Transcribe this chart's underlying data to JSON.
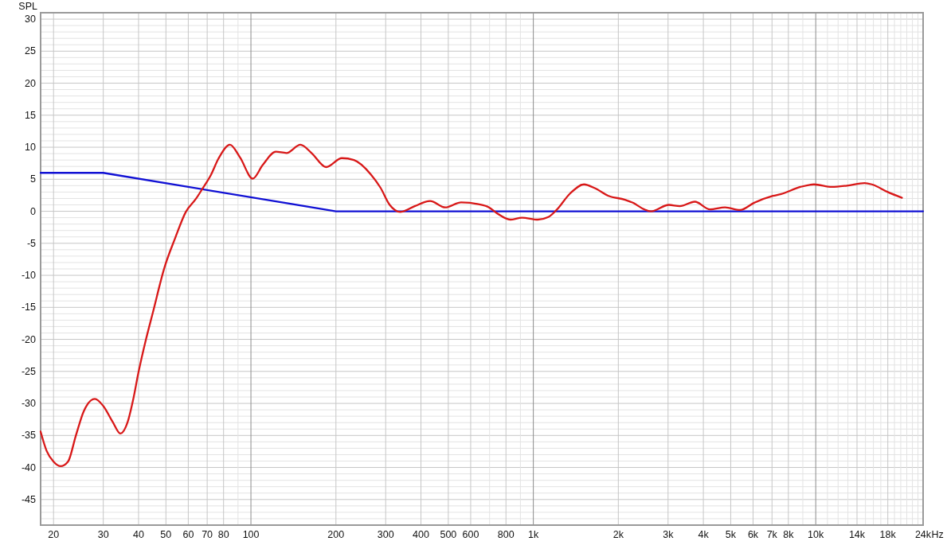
{
  "chart_data": {
    "type": "line",
    "ylabel": "SPL",
    "xlabel": "Hz",
    "log": "x",
    "grid": true,
    "xlim": [
      18,
      24000
    ],
    "ylim": [
      -49,
      31
    ],
    "xticks": [
      20,
      30,
      40,
      50,
      60,
      70,
      80,
      {
        "value": 90,
        "label": null
      },
      100,
      200,
      300,
      400,
      500,
      600,
      {
        "value": 700,
        "label": null
      },
      800,
      {
        "value": 900,
        "label": null
      },
      {
        "value": 1000,
        "label": "1k"
      },
      {
        "value": 2000,
        "label": "2k"
      },
      {
        "value": 3000,
        "label": "3k"
      },
      {
        "value": 4000,
        "label": "4k"
      },
      {
        "value": 5000,
        "label": "5k"
      },
      {
        "value": 6000,
        "label": "6k"
      },
      {
        "value": 7000,
        "label": "7k"
      },
      {
        "value": 8000,
        "label": "8k"
      },
      {
        "value": 9000,
        "label": null
      },
      {
        "value": 10000,
        "label": "10k"
      },
      {
        "value": 11000,
        "label": null
      },
      {
        "value": 12000,
        "label": null
      },
      {
        "value": 13000,
        "label": null
      },
      {
        "value": 14000,
        "label": "14k"
      },
      {
        "value": 15000,
        "label": null
      },
      {
        "value": 16000,
        "label": null
      },
      {
        "value": 17000,
        "label": null
      },
      {
        "value": 18000,
        "label": "18k"
      },
      {
        "value": 19000,
        "label": null
      },
      {
        "value": 20000,
        "label": null
      },
      {
        "value": 21000,
        "label": null
      },
      {
        "value": 22000,
        "label": null
      },
      {
        "value": 23000,
        "label": null
      },
      {
        "value": 24000,
        "label": "24k"
      }
    ],
    "yticks": [
      {
        "value": -48,
        "label": null
      },
      {
        "value": -47,
        "label": null
      },
      {
        "value": -46,
        "label": null
      },
      -45,
      {
        "value": -44,
        "label": null
      },
      {
        "value": -43,
        "label": null
      },
      {
        "value": -42,
        "label": null
      },
      {
        "value": -41,
        "label": null
      },
      -40,
      {
        "value": -39,
        "label": null
      },
      {
        "value": -38,
        "label": null
      },
      {
        "value": -37,
        "label": null
      },
      {
        "value": -36,
        "label": null
      },
      -35,
      {
        "value": -34,
        "label": null
      },
      {
        "value": -33,
        "label": null
      },
      {
        "value": -32,
        "label": null
      },
      {
        "value": -31,
        "label": null
      },
      -30,
      {
        "value": -29,
        "label": null
      },
      {
        "value": -28,
        "label": null
      },
      {
        "value": -27,
        "label": null
      },
      {
        "value": -26,
        "label": null
      },
      -25,
      {
        "value": -24,
        "label": null
      },
      {
        "value": -23,
        "label": null
      },
      {
        "value": -22,
        "label": null
      },
      {
        "value": -21,
        "label": null
      },
      -20,
      {
        "value": -19,
        "label": null
      },
      {
        "value": -18,
        "label": null
      },
      {
        "value": -17,
        "label": null
      },
      {
        "value": -16,
        "label": null
      },
      -15,
      {
        "value": -14,
        "label": null
      },
      {
        "value": -13,
        "label": null
      },
      {
        "value": -12,
        "label": null
      },
      {
        "value": -11,
        "label": null
      },
      -10,
      {
        "value": -9,
        "label": null
      },
      {
        "value": -8,
        "label": null
      },
      {
        "value": -7,
        "label": null
      },
      {
        "value": -6,
        "label": null
      },
      -5,
      {
        "value": -4,
        "label": null
      },
      {
        "value": -3,
        "label": null
      },
      {
        "value": -2,
        "label": null
      },
      {
        "value": -1,
        "label": null
      },
      0,
      {
        "value": 1,
        "label": null
      },
      {
        "value": 2,
        "label": null
      },
      {
        "value": 3,
        "label": null
      },
      {
        "value": 4,
        "label": null
      },
      5,
      {
        "value": 6,
        "label": null
      },
      {
        "value": 7,
        "label": null
      },
      {
        "value": 8,
        "label": null
      },
      {
        "value": 9,
        "label": null
      },
      10,
      {
        "value": 11,
        "label": null
      },
      {
        "value": 12,
        "label": null
      },
      {
        "value": 13,
        "label": null
      },
      {
        "value": 14,
        "label": null
      },
      15,
      {
        "value": 16,
        "label": null
      },
      {
        "value": 17,
        "label": null
      },
      {
        "value": 18,
        "label": null
      },
      {
        "value": 19,
        "label": null
      },
      20,
      {
        "value": 21,
        "label": null
      },
      {
        "value": 22,
        "label": null
      },
      {
        "value": 23,
        "label": null
      },
      {
        "value": 24,
        "label": null
      },
      25,
      {
        "value": 26,
        "label": null
      },
      {
        "value": 27,
        "label": null
      },
      {
        "value": 28,
        "label": null
      },
      {
        "value": 29,
        "label": null
      },
      30
    ],
    "series": [
      {
        "color": "#1010d4",
        "x": [
          18,
          30,
          200,
          24000
        ],
        "values": [
          6,
          6,
          0,
          0
        ]
      },
      {
        "color": "#d81818",
        "x": [
          18,
          18.9,
          20,
          21.2,
          22.5,
          24,
          25.6,
          28,
          30,
          32.4,
          34.5,
          36.6,
          38.2,
          40,
          42.5,
          44.9,
          49.4,
          53.9,
          58.8,
          64,
          67.3,
          72.2,
          76.7,
          84.3,
          91.5,
          101.5,
          110,
          122.5,
          133.6,
          149.7,
          163.9,
          184.6,
          210,
          231.6,
          266.5,
          287.4,
          310,
          338,
          380,
          431,
          488,
          555,
          639,
          697,
          743,
          828,
          912,
          1038,
          1130,
          1208,
          1351,
          1511,
          1652,
          1847,
          2112,
          2259,
          2470,
          2612,
          3019,
          3302,
          3734,
          4221,
          4773,
          5398,
          6035,
          7054,
          7545,
          8818,
          9864,
          11400,
          12900,
          14900,
          15800,
          18000,
          20200
        ],
        "values": [
          -34.4,
          -37.4,
          -39.1,
          -39.8,
          -39.1,
          -35,
          -31.2,
          -29.3,
          -30.4,
          -32.9,
          -34.7,
          -32.9,
          -29.6,
          -25.1,
          -20,
          -15.9,
          -8.8,
          -4.2,
          -0.1,
          2,
          3.5,
          5.7,
          8.2,
          10.4,
          8.4,
          5.1,
          7.2,
          9.3,
          9.1,
          10.4,
          9.1,
          6.9,
          8.3,
          8,
          5.7,
          3.7,
          1,
          -0.1,
          0.8,
          1.6,
          0.6,
          1.4,
          1.1,
          0.6,
          -0.3,
          -1.3,
          -1,
          -1.3,
          -0.9,
          0.2,
          2.8,
          4.2,
          3.6,
          2.4,
          1.8,
          1.3,
          0.3,
          0,
          1,
          0.8,
          1.5,
          0.3,
          0.6,
          0.2,
          1.3,
          2.4,
          2.7,
          3.8,
          4.2,
          3.8,
          4,
          4.4,
          4.2,
          3,
          2.1
        ]
      }
    ]
  }
}
